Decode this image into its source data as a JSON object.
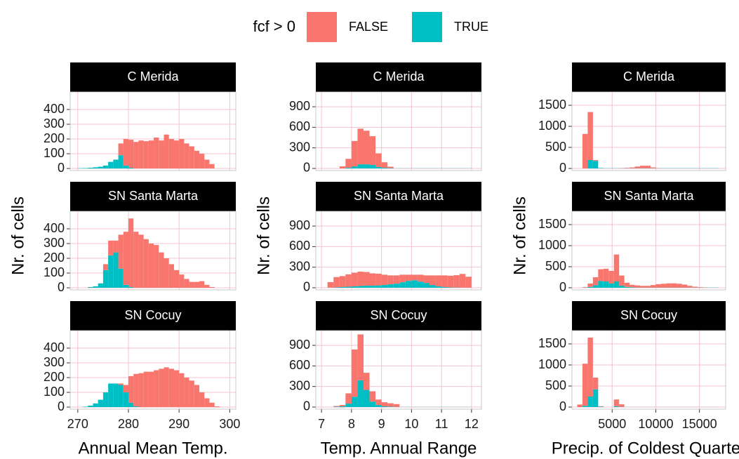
{
  "chart_data": [
    {
      "type": "histogram",
      "legend_title": "fcf > 0",
      "strip": "C Merida",
      "bins": [
        270,
        271,
        272,
        273,
        274,
        275,
        276,
        277,
        278,
        279,
        280,
        281,
        282,
        283,
        284,
        285,
        286,
        287,
        288,
        289,
        290,
        291,
        292,
        293,
        294,
        295,
        296,
        297,
        298
      ],
      "series": [
        {
          "name": "FALSE",
          "color": "#F8766D",
          "values": [
            0,
            0,
            0,
            0,
            0,
            0,
            0,
            0,
            80,
            180,
            190,
            180,
            190,
            185,
            190,
            210,
            190,
            230,
            200,
            190,
            200,
            170,
            150,
            120,
            100,
            60,
            30,
            0
          ]
        },
        {
          "name": "TRUE",
          "color": "#00BFC4",
          "values": [
            2,
            3,
            5,
            8,
            12,
            20,
            45,
            60,
            90,
            20,
            5,
            0,
            0,
            0,
            0,
            0,
            0,
            0,
            0,
            0,
            0,
            0,
            0,
            0,
            0,
            0,
            0,
            0
          ]
        }
      ],
      "xlim": [
        268.5,
        301.2
      ],
      "ylim": [
        -14,
        519
      ],
      "xticks": [
        270,
        280,
        290,
        300
      ],
      "yticks": [
        0,
        100,
        200,
        300,
        400
      ],
      "grid": true
    },
    {
      "type": "histogram",
      "strip": "SN Santa Marta",
      "y_label": "Nr. of cells",
      "bins": [
        270,
        271,
        272,
        273,
        274,
        275,
        276,
        277,
        278,
        279,
        280,
        281,
        282,
        283,
        284,
        285,
        286,
        287,
        288,
        289,
        290,
        291,
        292,
        293,
        294,
        295,
        296,
        297,
        298
      ],
      "series": [
        {
          "name": "FALSE",
          "color": "#F8766D",
          "values": [
            0,
            0,
            0,
            0,
            0,
            40,
            100,
            80,
            230,
            360,
            465,
            380,
            360,
            330,
            300,
            290,
            240,
            200,
            160,
            120,
            90,
            60,
            40,
            40,
            45,
            20,
            5,
            0
          ]
        },
        {
          "name": "TRUE",
          "color": "#00BFC4",
          "values": [
            0,
            0,
            5,
            10,
            30,
            120,
            220,
            240,
            130,
            20,
            5,
            0,
            0,
            0,
            0,
            0,
            0,
            0,
            0,
            0,
            0,
            0,
            0,
            0,
            0,
            0,
            0,
            0
          ]
        }
      ],
      "xlim": [
        268.5,
        301.2
      ],
      "ylim": [
        -14,
        519
      ],
      "xticks": [
        270,
        280,
        290,
        300
      ],
      "yticks": [
        0,
        100,
        200,
        300,
        400
      ],
      "grid": true
    },
    {
      "type": "histogram",
      "strip": "SN Cocuy",
      "x_label": "Annual Mean Temp.",
      "bins": [
        270,
        271,
        272,
        273,
        274,
        275,
        276,
        277,
        278,
        279,
        280,
        281,
        282,
        283,
        284,
        285,
        286,
        287,
        288,
        289,
        290,
        291,
        292,
        293,
        294,
        295,
        296,
        297,
        298
      ],
      "series": [
        {
          "name": "FALSE",
          "color": "#F8766D",
          "values": [
            0,
            0,
            0,
            0,
            0,
            0,
            0,
            0,
            10,
            50,
            180,
            220,
            230,
            240,
            240,
            250,
            260,
            270,
            260,
            250,
            230,
            200,
            180,
            150,
            100,
            60,
            30,
            5
          ]
        },
        {
          "name": "TRUE",
          "color": "#00BFC4",
          "values": [
            0,
            3,
            10,
            25,
            50,
            100,
            160,
            160,
            150,
            100,
            30,
            5,
            0,
            0,
            0,
            0,
            0,
            0,
            0,
            0,
            0,
            0,
            0,
            0,
            0,
            0,
            0,
            0
          ]
        }
      ],
      "xlim": [
        268.5,
        301.2
      ],
      "ylim": [
        -14,
        519
      ],
      "xticks": [
        270,
        280,
        290,
        300
      ],
      "yticks": [
        0,
        100,
        200,
        300,
        400
      ],
      "grid": true,
      "show_xticks": true
    },
    {
      "type": "histogram",
      "strip": "C Merida",
      "bins": [
        7,
        7.2,
        7.4,
        7.6,
        7.8,
        8,
        8.2,
        8.4,
        8.6,
        8.8,
        9,
        9.2,
        9.4,
        9.6,
        9.8,
        10,
        10.2,
        10.4,
        10.6,
        10.8,
        11,
        11.2,
        11.4,
        11.6,
        11.8,
        12,
        12.2
      ],
      "series": [
        {
          "name": "FALSE",
          "color": "#F8766D",
          "values": [
            0,
            0,
            0,
            30,
            130,
            370,
            520,
            490,
            420,
            200,
            80,
            20,
            0,
            0,
            0,
            0,
            0,
            0,
            0,
            0,
            0,
            0,
            0,
            0,
            0,
            0
          ]
        },
        {
          "name": "TRUE",
          "color": "#00BFC4",
          "values": [
            0,
            0,
            0,
            0,
            10,
            30,
            60,
            60,
            50,
            20,
            10,
            5,
            2,
            2,
            2,
            2,
            2,
            2,
            2,
            2,
            2,
            2,
            2,
            2,
            2,
            0
          ]
        }
      ],
      "xlim": [
        6.81,
        12.33
      ],
      "ylim": [
        -31,
        1116
      ],
      "xticks": [
        7,
        8,
        9,
        10,
        11,
        12
      ],
      "yticks": [
        0,
        300,
        600,
        900
      ],
      "grid": true
    },
    {
      "type": "histogram",
      "strip": "SN Santa Marta",
      "y_label": "Nr. of cells",
      "bins": [
        7,
        7.2,
        7.4,
        7.6,
        7.8,
        8,
        8.2,
        8.4,
        8.6,
        8.8,
        9,
        9.2,
        9.4,
        9.6,
        9.8,
        10,
        10.2,
        10.4,
        10.6,
        10.8,
        11,
        11.2,
        11.4,
        11.6,
        11.8,
        12,
        12.2
      ],
      "series": [
        {
          "name": "FALSE",
          "color": "#F8766D",
          "values": [
            0,
            80,
            150,
            160,
            180,
            200,
            210,
            200,
            180,
            170,
            150,
            130,
            120,
            110,
            90,
            80,
            100,
            110,
            140,
            160,
            170,
            170,
            180,
            200,
            160,
            0
          ]
        },
        {
          "name": "TRUE",
          "color": "#00BFC4",
          "values": [
            0,
            2,
            5,
            10,
            15,
            20,
            25,
            30,
            30,
            35,
            40,
            50,
            60,
            80,
            100,
            110,
            90,
            70,
            40,
            20,
            10,
            5,
            3,
            2,
            1,
            0
          ]
        }
      ],
      "xlim": [
        6.81,
        12.33
      ],
      "ylim": [
        -31,
        1116
      ],
      "xticks": [
        7,
        8,
        9,
        10,
        11,
        12
      ],
      "yticks": [
        0,
        300,
        600,
        900
      ],
      "grid": true
    },
    {
      "type": "histogram",
      "strip": "SN Cocuy",
      "x_label": "Temp. Annual Range",
      "bins": [
        7,
        7.2,
        7.4,
        7.6,
        7.8,
        8,
        8.2,
        8.4,
        8.6,
        8.8,
        9,
        9.2,
        9.4,
        9.6,
        9.8,
        10,
        10.2,
        10.4,
        10.6,
        10.8,
        11,
        11.2,
        11.4,
        11.6,
        11.8,
        12,
        12.2
      ],
      "series": [
        {
          "name": "FALSE",
          "color": "#F8766D",
          "values": [
            0,
            0,
            10,
            20,
            150,
            690,
            670,
            250,
            150,
            80,
            60,
            50,
            40,
            0,
            0,
            0,
            0,
            0,
            0,
            0,
            0,
            0,
            0,
            0,
            0,
            0
          ]
        },
        {
          "name": "TRUE",
          "color": "#00BFC4",
          "values": [
            0,
            0,
            5,
            10,
            50,
            150,
            390,
            250,
            80,
            30,
            10,
            5,
            3,
            2,
            2,
            2,
            2,
            2,
            2,
            2,
            2,
            2,
            2,
            2,
            2,
            0
          ]
        }
      ],
      "xlim": [
        6.81,
        12.33
      ],
      "ylim": [
        -31,
        1116
      ],
      "xticks": [
        7,
        8,
        9,
        10,
        11,
        12
      ],
      "yticks": [
        0,
        300,
        600,
        900
      ],
      "grid": true,
      "show_xticks": true
    },
    {
      "type": "histogram",
      "strip": "C Merida",
      "bins": [
        1000,
        1600,
        2200,
        2800,
        3400,
        4000,
        4600,
        5200,
        5800,
        6400,
        7000,
        7600,
        8200,
        8800,
        9400,
        10000,
        10600,
        11200,
        11800,
        12400,
        13000,
        13600,
        14200,
        14800,
        15400,
        16000,
        16600,
        17200,
        17800
      ],
      "series": [
        {
          "name": "FALSE",
          "color": "#F8766D",
          "values": [
            0,
            820,
            1140,
            20,
            0,
            0,
            0,
            0,
            5,
            10,
            20,
            40,
            60,
            60,
            20,
            5,
            0,
            0,
            0,
            0,
            0,
            0,
            0,
            0,
            0,
            0,
            0,
            0
          ]
        },
        {
          "name": "TRUE",
          "color": "#00BFC4",
          "values": [
            0,
            0,
            200,
            180,
            10,
            5,
            5,
            5,
            5,
            5,
            5,
            5,
            5,
            5,
            5,
            5,
            5,
            5,
            5,
            5,
            5,
            5,
            5,
            5,
            5,
            5,
            5,
            0
          ]
        }
      ],
      "xlim": [
        400,
        18000
      ],
      "ylim": [
        -50,
        1817
      ],
      "xticks": [
        5000,
        10000,
        15000
      ],
      "yticks": [
        0,
        500,
        1000,
        1500
      ],
      "grid": true
    },
    {
      "type": "histogram",
      "strip": "SN Santa Marta",
      "y_label": "Nr. of cells",
      "bins": [
        1000,
        1600,
        2200,
        2800,
        3400,
        4000,
        4600,
        5200,
        5800,
        6400,
        7000,
        7600,
        8200,
        8800,
        9400,
        10000,
        10600,
        11200,
        11800,
        12400,
        13000,
        13600,
        14200,
        14800,
        15400,
        16000,
        16600,
        17200,
        17800
      ],
      "series": [
        {
          "name": "FALSE",
          "color": "#F8766D",
          "values": [
            0,
            10,
            80,
            190,
            280,
            300,
            300,
            640,
            240,
            100,
            60,
            50,
            40,
            40,
            60,
            80,
            90,
            100,
            100,
            90,
            70,
            40,
            20,
            10,
            5,
            0,
            0,
            0
          ]
        },
        {
          "name": "TRUE",
          "color": "#00BFC4",
          "values": [
            0,
            5,
            20,
            60,
            160,
            150,
            100,
            150,
            50,
            20,
            10,
            5,
            5,
            5,
            5,
            5,
            5,
            5,
            5,
            5,
            5,
            5,
            5,
            5,
            5,
            5,
            5,
            0
          ]
        }
      ],
      "xlim": [
        400,
        18000
      ],
      "ylim": [
        -50,
        1817
      ],
      "xticks": [
        5000,
        10000,
        15000
      ],
      "yticks": [
        0,
        500,
        1000,
        1500
      ],
      "grid": true
    },
    {
      "type": "histogram",
      "strip": "SN Cocuy",
      "x_label": "Precip. of Coldest Quarter",
      "bins": [
        1000,
        1600,
        2200,
        2800,
        3400,
        4000,
        4600,
        5200,
        5800,
        6400,
        7000,
        7600,
        8200,
        8800,
        9400,
        10000,
        10600,
        11200,
        11800,
        12400,
        13000,
        13600,
        14200,
        14800,
        15400,
        16000,
        16600,
        17200,
        17800
      ],
      "series": [
        {
          "name": "FALSE",
          "color": "#F8766D",
          "values": [
            60,
            1000,
            1400,
            280,
            10,
            0,
            0,
            160,
            60,
            0,
            0,
            0,
            0,
            0,
            0,
            0,
            0,
            0,
            0,
            0,
            0,
            0,
            0,
            0,
            0,
            0,
            0,
            0
          ]
        },
        {
          "name": "TRUE",
          "color": "#00BFC4",
          "values": [
            0,
            30,
            250,
            420,
            10,
            0,
            0,
            20,
            5,
            2,
            2,
            2,
            2,
            2,
            2,
            2,
            2,
            2,
            2,
            2,
            2,
            2,
            2,
            2,
            2,
            2,
            2,
            0
          ]
        }
      ],
      "xlim": [
        400,
        18000
      ],
      "ylim": [
        -50,
        1817
      ],
      "xticks": [
        5000,
        10000,
        15000
      ],
      "yticks": [
        0,
        500,
        1000,
        1500
      ],
      "grid": true,
      "show_xticks": true
    }
  ]
}
